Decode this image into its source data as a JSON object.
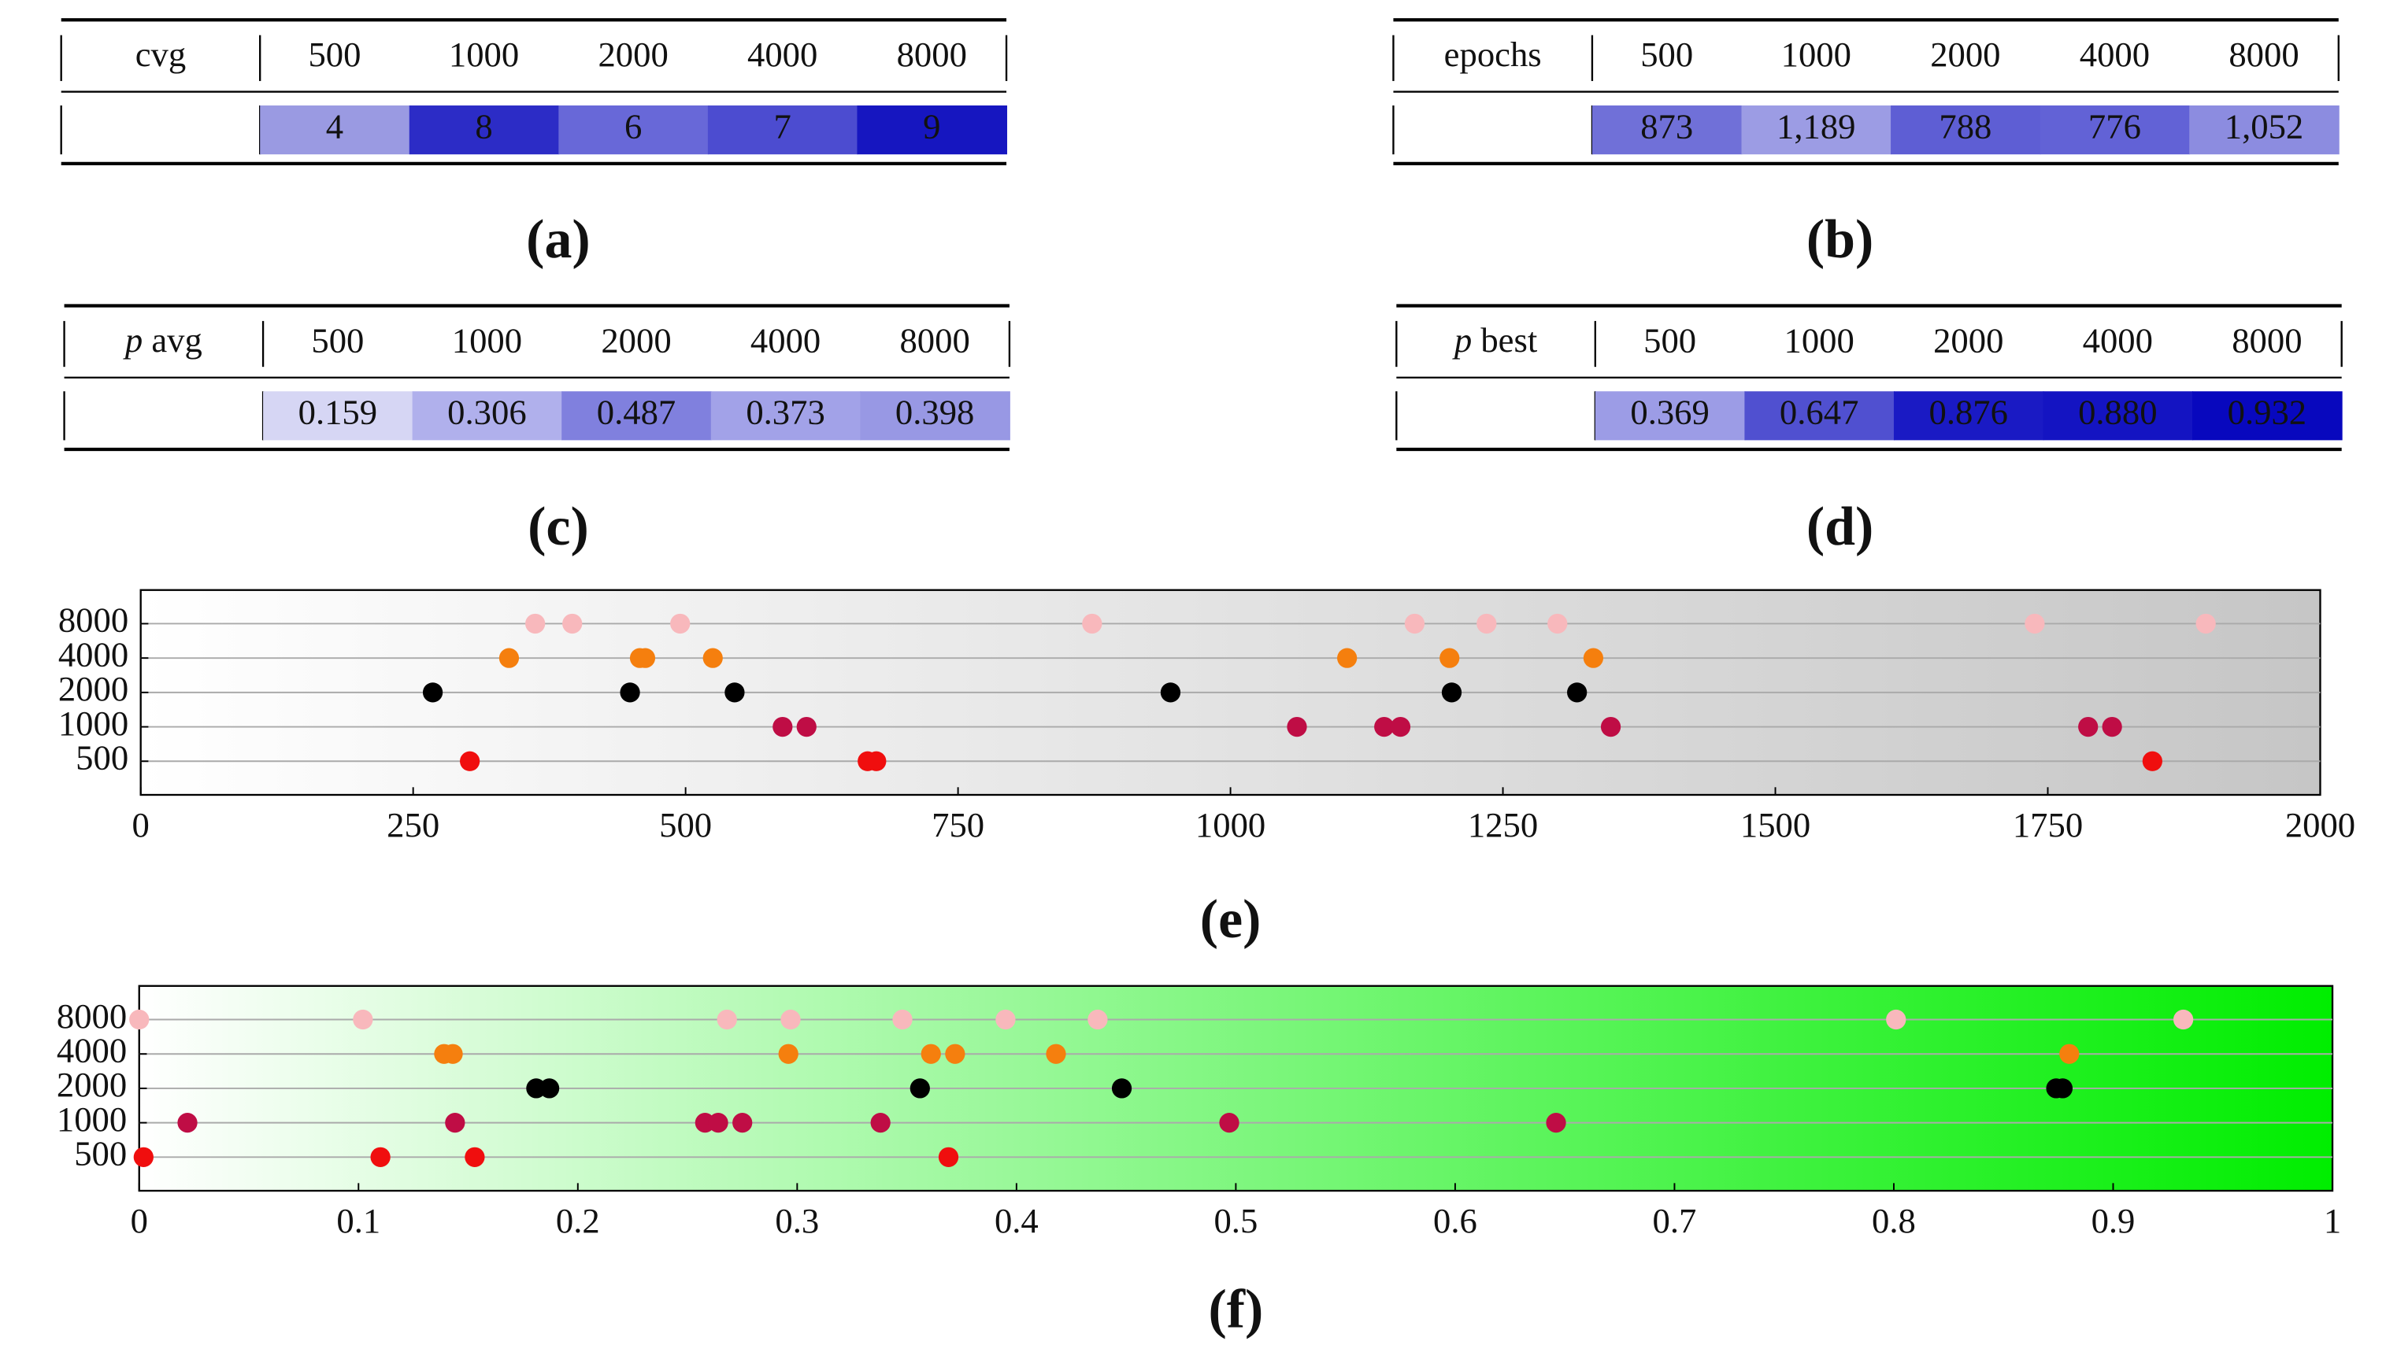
{
  "tables": [
    {
      "header": "cvg",
      "columns": [
        500,
        1000,
        2000,
        4000,
        8000
      ],
      "values": [
        4,
        8,
        6,
        7,
        9
      ],
      "colors": [
        "#9a9ae2",
        "#2c2cc6",
        "#6868d8",
        "#4c4cd0",
        "#1616c0"
      ],
      "caption": "(a)"
    },
    {
      "header": "epochs",
      "columns": [
        500,
        1000,
        2000,
        4000,
        8000
      ],
      "values": [
        873,
        1189,
        788,
        776,
        1052
      ],
      "value_labels": [
        "873",
        "1,189",
        "788",
        "776",
        "1,052"
      ],
      "colors": [
        "#7070d8",
        "#9c9ce4",
        "#5e5ed4",
        "#6262d6",
        "#8c8ce0"
      ],
      "caption": "(b)"
    },
    {
      "symbol": "p",
      "header": "avg",
      "columns": [
        500,
        1000,
        2000,
        4000,
        8000
      ],
      "values": [
        0.159,
        0.306,
        0.487,
        0.373,
        0.398
      ],
      "colors": [
        "#d6d6f4",
        "#b0b0ec",
        "#8080de",
        "#a2a2e8",
        "#9898e4"
      ],
      "caption": "(c)"
    },
    {
      "symbol": "p",
      "header": "best",
      "columns": [
        500,
        1000,
        2000,
        4000,
        8000
      ],
      "values": [
        0.369,
        0.647,
        0.876,
        0.88,
        0.932
      ],
      "value_labels": [
        "0.369",
        "0.647",
        "0.876",
        "0.880",
        "0.932"
      ],
      "colors": [
        "#9c9ce6",
        "#5050d0",
        "#1a1ac4",
        "#1414c2",
        "#0808be"
      ],
      "caption": "(d)"
    }
  ],
  "chart_data": [
    {
      "type": "scatter",
      "title": "(e)",
      "xlim": [
        0,
        2000
      ],
      "xticks": [
        0,
        250,
        500,
        750,
        1000,
        1250,
        1500,
        1750,
        2000
      ],
      "background": [
        "#ffffff",
        "#c6c6c6"
      ],
      "grid": true,
      "series": [
        {
          "name": "8000",
          "color": "#f8b8bc",
          "values": [
            362,
            396,
            495,
            873,
            1169,
            1235,
            1300,
            1738,
            1895
          ]
        },
        {
          "name": "4000",
          "color": "#f57f0e",
          "values": [
            338,
            458,
            463,
            525,
            1107,
            1201,
            1333
          ]
        },
        {
          "name": "2000",
          "color": "#000000",
          "values": [
            268,
            449,
            545,
            945,
            1203,
            1318
          ]
        },
        {
          "name": "1000",
          "color": "#bf0d45",
          "values": [
            589,
            611,
            1061,
            1141,
            1156,
            1349,
            1787,
            1809
          ]
        },
        {
          "name": "500",
          "color": "#f00e0e",
          "values": [
            302,
            667,
            675,
            1846
          ]
        }
      ]
    },
    {
      "type": "scatter",
      "title": "(f)",
      "xlim": [
        0,
        1
      ],
      "xticks": [
        0,
        0.1,
        0.2,
        0.3,
        0.4,
        0.5,
        0.6,
        0.7,
        0.8,
        0.9,
        1
      ],
      "background": [
        "#ffffff",
        "#00ee00"
      ],
      "grid": true,
      "series": [
        {
          "name": "8000",
          "color": "#f8b8bc",
          "values": [
            0.0,
            0.102,
            0.268,
            0.297,
            0.348,
            0.395,
            0.437,
            0.801,
            0.932
          ]
        },
        {
          "name": "4000",
          "color": "#f57f0e",
          "values": [
            0.139,
            0.143,
            0.296,
            0.361,
            0.372,
            0.418,
            0.88
          ]
        },
        {
          "name": "2000",
          "color": "#000000",
          "values": [
            0.181,
            0.187,
            0.356,
            0.448,
            0.874,
            0.877
          ]
        },
        {
          "name": "1000",
          "color": "#bf0d45",
          "values": [
            0.022,
            0.144,
            0.258,
            0.264,
            0.275,
            0.338,
            0.497,
            0.646
          ]
        },
        {
          "name": "500",
          "color": "#f00e0e",
          "values": [
            0.002,
            0.11,
            0.153,
            0.369
          ]
        }
      ]
    }
  ]
}
